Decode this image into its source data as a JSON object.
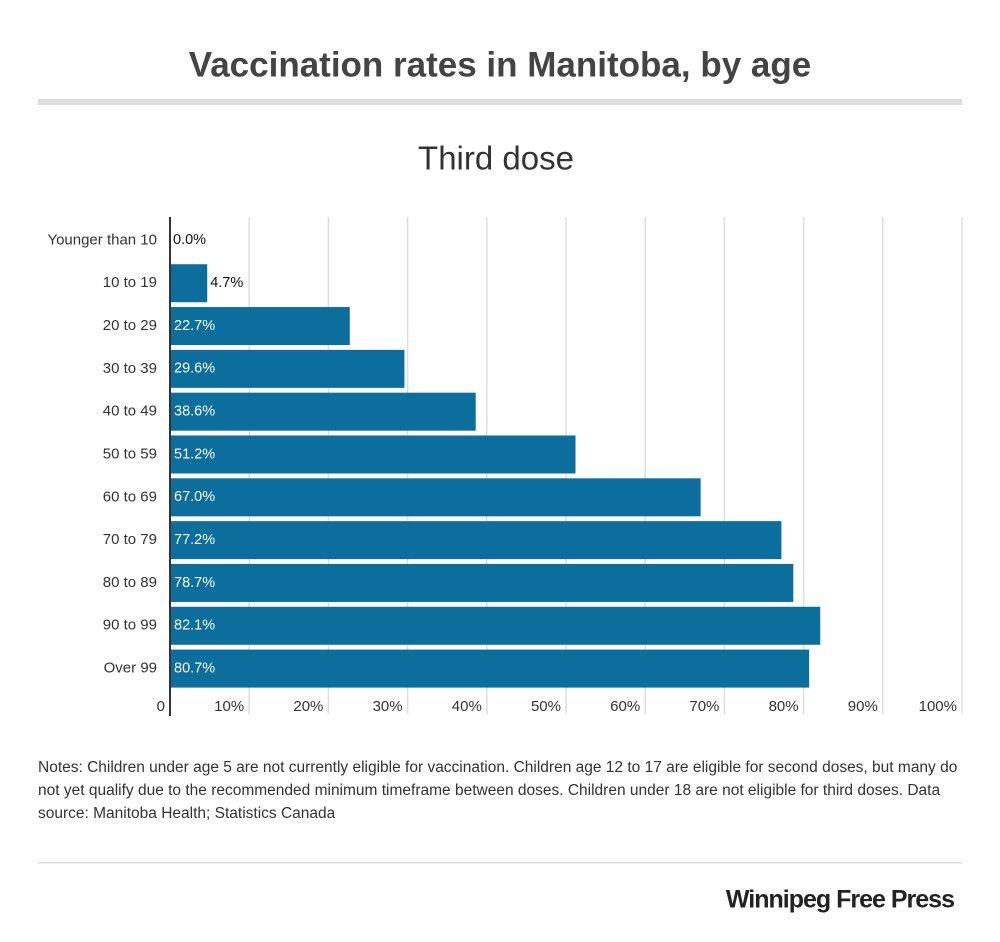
{
  "chart_data": {
    "type": "bar",
    "orientation": "horizontal",
    "title": "Vaccination rates in Manitoba, by age",
    "subtitle": "Third dose",
    "categories": [
      "Younger than 10",
      "10 to 19",
      "20 to 29",
      "30 to 39",
      "40 to 49",
      "50 to 59",
      "60 to 69",
      "70 to 79",
      "80 to 89",
      "90 to 99",
      "Over 99"
    ],
    "values": [
      0.0,
      4.7,
      22.7,
      29.6,
      38.6,
      51.2,
      67.0,
      77.2,
      78.7,
      82.1,
      80.7
    ],
    "value_labels": [
      "0.0%",
      "4.7%",
      "22.7%",
      "29.6%",
      "38.6%",
      "51.2%",
      "67.0%",
      "77.2%",
      "78.7%",
      "82.1%",
      "80.7%"
    ],
    "color": "#0b6e9c",
    "xlim": [
      0,
      100
    ],
    "xticks": [
      0,
      {
        "value": 10,
        "label": "10%"
      },
      {
        "value": 20,
        "label": "20%"
      },
      {
        "value": 30,
        "label": "30%"
      },
      {
        "value": 40,
        "label": "40%"
      },
      {
        "value": 50,
        "label": "50%"
      },
      {
        "value": 60,
        "label": "60%"
      },
      {
        "value": 70,
        "label": "70%"
      },
      {
        "value": 80,
        "label": "80%"
      },
      {
        "value": 90,
        "label": "90%"
      },
      {
        "value": 100,
        "label": "100%"
      }
    ],
    "grid": true,
    "notes": "Notes: Children under age 5 are not currently eligible for vaccination. Children age 12 to 17 are eligible for second doses, but many do not yet qualify due to the recommended minimum timeframe between doses. Children under 18 are not eligible for third doses.  Data source: Manitoba Health; Statistics Canada",
    "source": "Winnipeg Free Press"
  }
}
